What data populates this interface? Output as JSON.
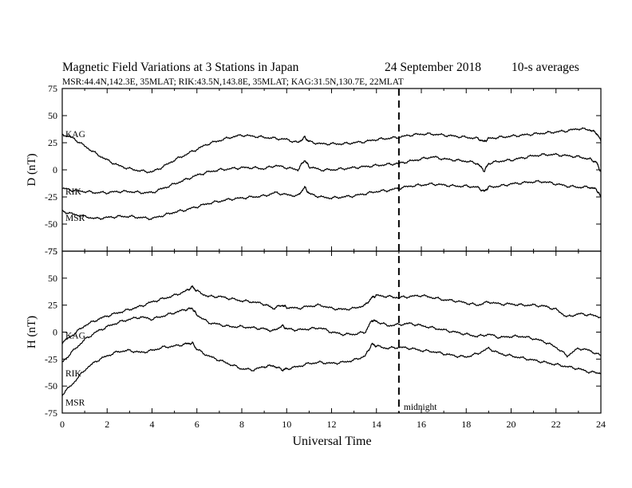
{
  "header": {
    "title": "Magnetic Field Variations at 3 Stations in Japan",
    "date": "24 September",
    "year": "2018",
    "averages": "10-s averages",
    "subtitle": "MSR:44.4N,142.3E, 35MLAT;  RIK:43.5N,143.8E, 35MLAT;  KAG:31.5N,130.7E, 22MLAT"
  },
  "annotation": {
    "midnight_label": "midnight",
    "midnight_ut": 15
  },
  "chart_data": [
    {
      "type": "line",
      "ylabel": "D (nT)",
      "xlim": [
        0,
        24
      ],
      "ylim": [
        -75,
        75
      ],
      "yticks": [
        -75,
        -50,
        -25,
        0,
        25,
        50,
        75
      ],
      "x": [
        0,
        0.5,
        1,
        1.5,
        2,
        2.5,
        3,
        3.5,
        4,
        4.5,
        5,
        5.5,
        6,
        6.5,
        7,
        7.5,
        8,
        8.5,
        9,
        9.5,
        10,
        10.5,
        10.8,
        11,
        11.5,
        12,
        12.5,
        13,
        13.5,
        14,
        14.5,
        15,
        15.5,
        16,
        16.5,
        17,
        17.5,
        18,
        18.5,
        18.8,
        19,
        19.5,
        20,
        20.5,
        21,
        21.5,
        22,
        22.5,
        23,
        23.5,
        23.8,
        24
      ],
      "series": [
        {
          "name": "KAG",
          "values": [
            33,
            29,
            22,
            15,
            9,
            4,
            1,
            -1,
            -2,
            3,
            9,
            14,
            19,
            24,
            27,
            30,
            32,
            31,
            30,
            29,
            28,
            25,
            30,
            26,
            24,
            24,
            24,
            25,
            26,
            28,
            29,
            30,
            32,
            33,
            33,
            32,
            31,
            30,
            29,
            26,
            29,
            30,
            31,
            32,
            33,
            34,
            35,
            36,
            38,
            37,
            34,
            27
          ]
        },
        {
          "name": "RIK",
          "values": [
            -17,
            -19,
            -20,
            -21,
            -21,
            -20,
            -20,
            -21,
            -21,
            -17,
            -13,
            -9,
            -5,
            -2,
            0,
            1,
            2,
            2,
            1,
            4,
            2,
            0,
            9,
            3,
            0,
            0,
            1,
            2,
            3,
            4,
            5,
            6,
            8,
            10,
            12,
            10,
            9,
            8,
            6,
            -1,
            6,
            8,
            9,
            11,
            13,
            14,
            14,
            13,
            12,
            10,
            7,
            -2
          ]
        },
        {
          "name": "MSR",
          "values": [
            -38,
            -41,
            -43,
            -45,
            -44,
            -43,
            -43,
            -44,
            -45,
            -42,
            -39,
            -37,
            -34,
            -31,
            -29,
            -27,
            -26,
            -25,
            -24,
            -21,
            -23,
            -24,
            -16,
            -22,
            -25,
            -26,
            -25,
            -24,
            -22,
            -20,
            -19,
            -17,
            -15,
            -14,
            -13,
            -14,
            -15,
            -15,
            -16,
            -20,
            -16,
            -15,
            -13,
            -12,
            -11,
            -11,
            -13,
            -15,
            -16,
            -16,
            -18,
            -25
          ]
        }
      ]
    },
    {
      "type": "line",
      "ylabel": "H (nT)",
      "xlabel": "Universal Time",
      "xlim": [
        0,
        24
      ],
      "ylim": [
        -75,
        75
      ],
      "xticks": [
        0,
        2,
        4,
        6,
        8,
        10,
        12,
        14,
        16,
        18,
        20,
        22,
        24
      ],
      "yticks": [
        -75,
        -50,
        -25,
        0,
        25,
        50,
        75
      ],
      "x": [
        0,
        0.5,
        1,
        1.5,
        2,
        2.5,
        3,
        3.5,
        4,
        4.5,
        5,
        5.5,
        5.8,
        6,
        6.5,
        7,
        7.5,
        8,
        8.5,
        9,
        9.4,
        9.8,
        10,
        10.5,
        11,
        11.5,
        12,
        12.5,
        13,
        13.5,
        13.8,
        14,
        14.5,
        15,
        15.5,
        16,
        16.5,
        17,
        17.5,
        18,
        18.5,
        19,
        19.5,
        20,
        20.5,
        21,
        21.5,
        22,
        22.5,
        23,
        23.5,
        24
      ],
      "series": [
        {
          "name": "KAG",
          "values": [
            -10,
            -2,
            6,
            11,
            15,
            18,
            21,
            24,
            28,
            31,
            34,
            38,
            42,
            38,
            33,
            33,
            31,
            29,
            28,
            26,
            22,
            25,
            23,
            22,
            24,
            25,
            22,
            21,
            22,
            25,
            32,
            34,
            33,
            32,
            33,
            34,
            32,
            30,
            29,
            27,
            25,
            28,
            26,
            26,
            25,
            25,
            24,
            21,
            14,
            17,
            16,
            14
          ]
        },
        {
          "name": "RIK",
          "values": [
            -28,
            -17,
            -7,
            0,
            5,
            9,
            12,
            14,
            12,
            15,
            18,
            21,
            22,
            16,
            9,
            7,
            5,
            5,
            4,
            3,
            1,
            6,
            3,
            2,
            3,
            4,
            0,
            -2,
            -2,
            0,
            11,
            10,
            6,
            7,
            8,
            6,
            4,
            2,
            0,
            -2,
            -4,
            -2,
            -5,
            -4,
            -4,
            -6,
            -9,
            -14,
            -22,
            -15,
            -17,
            -22
          ]
        },
        {
          "name": "MSR",
          "values": [
            -58,
            -47,
            -35,
            -27,
            -22,
            -18,
            -17,
            -19,
            -17,
            -14,
            -13,
            -11,
            -10,
            -16,
            -22,
            -26,
            -30,
            -34,
            -35,
            -32,
            -31,
            -35,
            -34,
            -32,
            -29,
            -28,
            -29,
            -28,
            -26,
            -22,
            -11,
            -13,
            -15,
            -14,
            -15,
            -17,
            -18,
            -20,
            -22,
            -23,
            -20,
            -15,
            -20,
            -22,
            -24,
            -26,
            -28,
            -30,
            -32,
            -34,
            -37,
            -38
          ]
        }
      ]
    }
  ]
}
